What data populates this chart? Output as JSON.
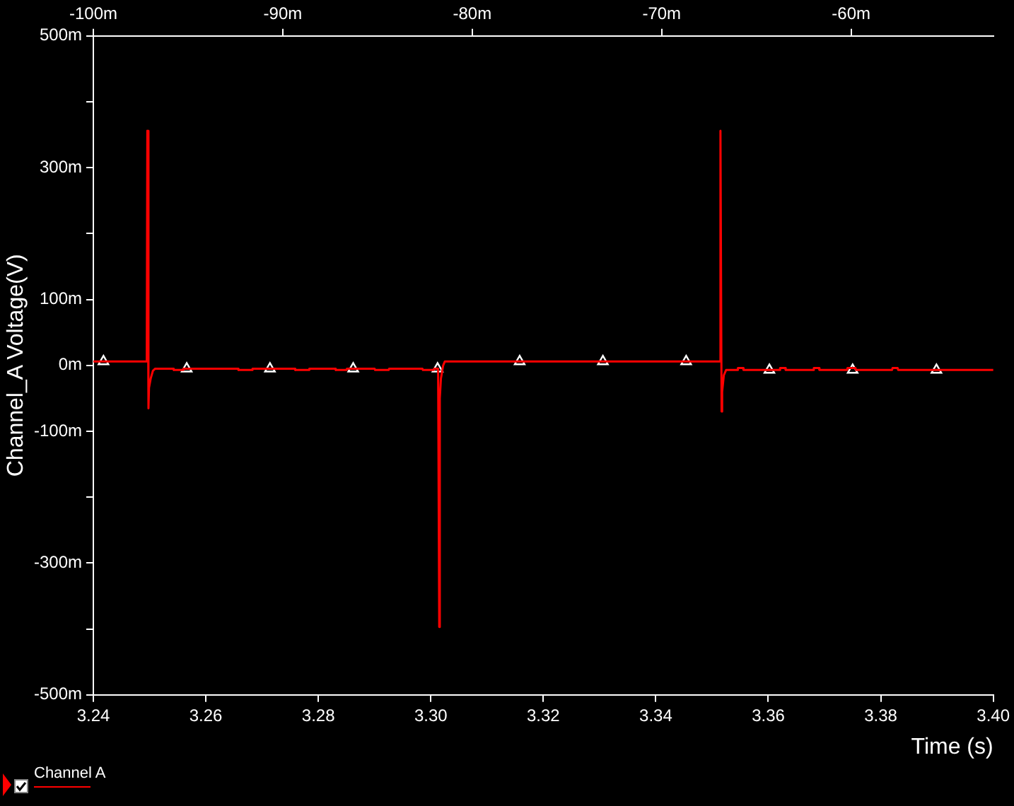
{
  "chart_data": {
    "type": "line",
    "xlabel": "Time (s)",
    "ylabel": "Channel_A Voltage(V)",
    "xlim": [
      3.24,
      3.4
    ],
    "xticks": [
      3.24,
      3.26,
      3.28,
      {
        "value": 3.3,
        "label": "3.30"
      },
      3.32,
      3.34,
      3.36,
      3.38,
      {
        "value": 3.4,
        "label": "3.40"
      }
    ],
    "x2lim": [
      -100,
      -52.5
    ],
    "x2ticks": [
      {
        "value": -100,
        "label": "-100m"
      },
      {
        "value": -90,
        "label": "-90m"
      },
      {
        "value": -80,
        "label": "-80m"
      },
      {
        "value": -70,
        "label": "-70m"
      },
      {
        "value": -60,
        "label": "-60m"
      }
    ],
    "ylim": [
      -500,
      500
    ],
    "yticks": [
      {
        "value": 500,
        "label": "500m"
      },
      {
        "value": 400,
        "label": null
      },
      {
        "value": 300,
        "label": "300m"
      },
      {
        "value": 200,
        "label": null
      },
      {
        "value": 100,
        "label": "100m"
      },
      {
        "value": 0,
        "label": "0m"
      },
      {
        "value": -100,
        "label": "-100m"
      },
      {
        "value": -200,
        "label": null
      },
      {
        "value": -300,
        "label": "-300m"
      },
      {
        "value": -400,
        "label": null
      },
      {
        "value": -500,
        "label": "-500m"
      }
    ],
    "grid": false,
    "legend": "bottom left",
    "line_style": "solid",
    "series": [
      {
        "name": "Channel A",
        "color": "#ff0000",
        "marker": "none",
        "x": [
          3.24,
          3.2495,
          3.2496,
          3.2498,
          3.2499,
          3.2502,
          3.2506,
          3.251,
          3.2542,
          3.2543,
          3.2559,
          3.256,
          3.2657,
          3.2658,
          3.2682,
          3.2683,
          3.2758,
          3.2759,
          3.2783,
          3.2784,
          3.283,
          3.2831,
          3.285,
          3.2851,
          3.29,
          3.2901,
          3.2925,
          3.2926,
          3.2985,
          3.2986,
          3.3005,
          3.3006,
          3.3013,
          3.3015,
          3.3016,
          3.3018,
          3.3022,
          3.3025,
          3.3514,
          3.3515,
          3.3517,
          3.3518,
          3.3521,
          3.3525,
          3.3545,
          3.3546,
          3.3555,
          3.3556,
          3.362,
          3.3621,
          3.363,
          3.3631,
          3.368,
          3.3681,
          3.369,
          3.3691,
          3.374,
          3.3741,
          3.3755,
          3.3756,
          3.382,
          3.3821,
          3.383,
          3.3831,
          3.4
        ],
        "values": [
          6,
          6,
          356,
          -65,
          -34,
          -20,
          -8,
          -5,
          -5,
          -7,
          -7,
          -5,
          -5,
          -7,
          -7,
          -5,
          -5,
          -7,
          -7,
          -5,
          -5,
          -7,
          -7,
          -5,
          -5,
          -7,
          -7,
          -5,
          -5,
          -7,
          -7,
          -5,
          -5,
          -397,
          -50,
          -20,
          0,
          6,
          6,
          356,
          -70,
          -40,
          -15,
          -7,
          -7,
          -4,
          -4,
          -7,
          -7,
          -4,
          -4,
          -7,
          -7,
          -4,
          -4,
          -7,
          -7,
          -4,
          -4,
          -7,
          -7,
          -4,
          -4,
          -7,
          -7
        ]
      },
      {
        "type": "scatter",
        "color": "#ffffff",
        "marker": "triangle",
        "x": [
          3.2418,
          3.2566,
          3.2714,
          3.2862,
          3.3012,
          3.3158,
          3.3306,
          3.3454,
          3.3602,
          3.375,
          3.3899
        ],
        "values": [
          6,
          -5,
          -5,
          -5,
          -5,
          6,
          6,
          6,
          -7,
          -7,
          -7
        ]
      }
    ]
  }
}
